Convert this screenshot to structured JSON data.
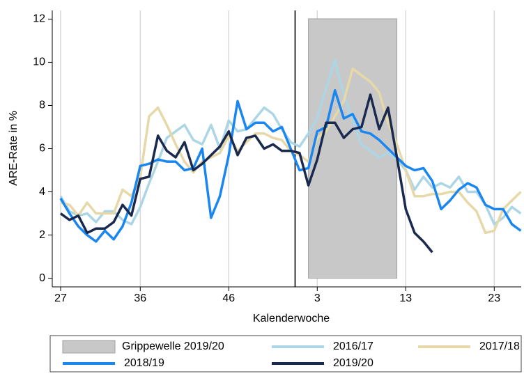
{
  "chart_data": {
    "type": "line",
    "x_label": "Kalenderwoche",
    "y_label": "ARE-Rate in %",
    "categories": [
      27,
      null,
      null,
      null,
      null,
      null,
      null,
      null,
      null,
      36,
      null,
      null,
      null,
      null,
      null,
      null,
      null,
      null,
      null,
      46,
      null,
      null,
      null,
      null,
      null,
      null,
      null,
      null,
      null,
      3,
      null,
      null,
      null,
      null,
      null,
      null,
      null,
      null,
      null,
      13,
      null,
      null,
      null,
      null,
      null,
      null,
      null,
      null,
      null,
      23,
      null,
      null,
      null
    ],
    "ylim": [
      -0.4,
      12.4
    ],
    "yticks": [
      0,
      2,
      4,
      6,
      8,
      10,
      12
    ],
    "grid": true,
    "band": {
      "name": "Grippewelle 2019/20",
      "color": "#c8c8c8",
      "from": 28,
      "to": 38
    },
    "series": [
      {
        "name": "2016/17",
        "color": "#acd6e6",
        "values": [
          3.8,
          3.1,
          2.9,
          3.0,
          2.6,
          3.1,
          3.1,
          2.7,
          2.5,
          3.3,
          4.4,
          5.4,
          6.5,
          6.8,
          7.1,
          6.4,
          6.2,
          7.1,
          6.0,
          7.3,
          6.8,
          6.9,
          7.4,
          7.9,
          7.6,
          6.9,
          6.3,
          6.1,
          6.7,
          7.4,
          8.8,
          10.1,
          8.5,
          7.3,
          6.2,
          5.9,
          5.6,
          5.8,
          5.5,
          5.0,
          4.1,
          4.7,
          4.2,
          4.4,
          4.2,
          4.7,
          4.0,
          4.0,
          3.4,
          2.5,
          2.8,
          3.3,
          3.0
        ]
      },
      {
        "name": "2017/18",
        "color": "#e6d8a8",
        "values": [
          3.5,
          3.4,
          2.9,
          3.5,
          3.0,
          3.0,
          3.0,
          4.1,
          3.8,
          4.7,
          7.5,
          7.9,
          7.1,
          6.2,
          5.4,
          4.9,
          5.4,
          5.6,
          5.8,
          6.6,
          5.9,
          6.3,
          6.7,
          6.7,
          6.5,
          6.4,
          5.9,
          5.7,
          5.4,
          6.5,
          6.8,
          7.5,
          8.2,
          9.7,
          9.4,
          9.1,
          8.6,
          7.2,
          6.2,
          5.0,
          3.8,
          3.8,
          3.9,
          3.9,
          4.0,
          4.0,
          3.5,
          3.1,
          2.1,
          2.2,
          3.2,
          3.6,
          4.0
        ]
      },
      {
        "name": "2018/19",
        "color": "#1a86f0",
        "values": [
          3.7,
          3.0,
          2.4,
          2.0,
          1.7,
          2.2,
          1.8,
          2.4,
          3.5,
          5.2,
          5.3,
          5.5,
          5.4,
          5.4,
          5.0,
          5.1,
          6.0,
          2.8,
          3.8,
          5.7,
          8.2,
          6.9,
          7.2,
          7.2,
          6.8,
          7.0,
          6.0,
          5.0,
          5.1,
          6.8,
          7.0,
          8.7,
          7.4,
          7.6,
          6.8,
          6.7,
          6.4,
          6.0,
          5.6,
          5.2,
          5.0,
          5.1,
          4.5,
          3.2,
          3.6,
          4.1,
          4.4,
          4.2,
          3.4,
          3.2,
          3.2,
          2.5,
          2.2
        ]
      },
      {
        "name": "2019/20",
        "color": "#1a2a4f",
        "values": [
          3.0,
          2.7,
          2.9,
          2.1,
          2.3,
          2.3,
          2.6,
          3.4,
          2.9,
          4.6,
          4.7,
          6.6,
          5.9,
          5.6,
          6.3,
          5.0,
          5.3,
          5.7,
          6.1,
          6.8,
          5.7,
          6.5,
          6.6,
          6.0,
          6.2,
          5.9,
          5.9,
          5.8,
          4.3,
          5.5,
          7.2,
          7.2,
          6.5,
          6.9,
          7.0,
          8.5,
          6.9,
          7.9,
          5.6,
          3.2,
          2.1,
          1.7,
          1.2,
          null,
          null,
          null,
          null,
          null,
          null,
          null,
          null,
          null,
          null
        ]
      }
    ]
  }
}
